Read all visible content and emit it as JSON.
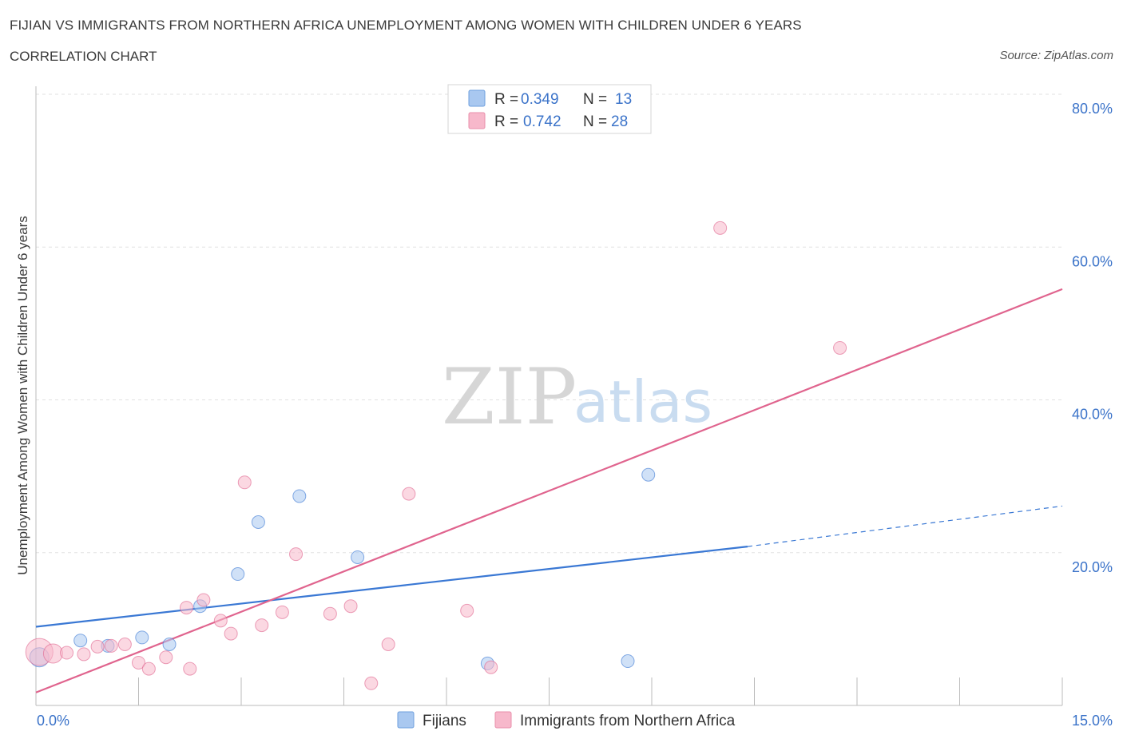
{
  "header": {
    "title": "FIJIAN VS IMMIGRANTS FROM NORTHERN AFRICA UNEMPLOYMENT AMONG WOMEN WITH CHILDREN UNDER 6 YEARS",
    "subtitle": "CORRELATION CHART",
    "source": "Source: ZipAtlas.com"
  },
  "watermark": {
    "zip": "ZIP",
    "atlas": "atlas"
  },
  "legend": {
    "rows": [
      {
        "r_label": "R =",
        "r_value": "0.349",
        "n_label": "N =",
        "n_value": "13",
        "color": "#a9c8f0"
      },
      {
        "r_label": "R =",
        "r_value": "0.742",
        "n_label": "N =",
        "n_value": "28",
        "color": "#f7b8cb"
      }
    ]
  },
  "chart_data": {
    "type": "scatter",
    "title": "FIJIAN VS IMMIGRANTS FROM NORTHERN AFRICA UNEMPLOYMENT AMONG WOMEN WITH CHILDREN UNDER 6 YEARS",
    "xlabel": "",
    "ylabel": "Unemployment Among Women with Children Under 6 years",
    "xlim": [
      0,
      15
    ],
    "ylim": [
      0,
      80
    ],
    "x_tick_labels": [
      "0.0%",
      "15.0%"
    ],
    "y_tick_values": [
      20,
      40,
      60,
      80
    ],
    "y_tick_labels": [
      "20.0%",
      "40.0%",
      "60.0%",
      "80.0%"
    ],
    "grid": true,
    "legend_position": "top-center",
    "series": [
      {
        "name": "Fijians",
        "color": "#3a78d4",
        "fill": "#a9c8f0",
        "points": [
          [
            0.05,
            6.3
          ],
          [
            0.65,
            8.5
          ],
          [
            1.05,
            7.8
          ],
          [
            1.55,
            8.9
          ],
          [
            1.95,
            8.0
          ],
          [
            2.4,
            13.0
          ],
          [
            2.95,
            17.2
          ],
          [
            3.25,
            24.0
          ],
          [
            3.85,
            27.4
          ],
          [
            4.7,
            19.4
          ],
          [
            6.6,
            5.5
          ],
          [
            8.65,
            5.8
          ],
          [
            8.95,
            30.2
          ]
        ],
        "trend": {
          "x": [
            0,
            10.4
          ],
          "y": [
            10.3,
            20.8
          ],
          "dashed_to": [
            15,
            26.1
          ]
        }
      },
      {
        "name": "Immigrants from Northern Africa",
        "color": "#e0648e",
        "fill": "#f7b8cb",
        "points": [
          [
            0.05,
            7.0
          ],
          [
            0.25,
            6.8
          ],
          [
            0.45,
            6.9
          ],
          [
            0.7,
            6.7
          ],
          [
            0.9,
            7.7
          ],
          [
            1.1,
            7.8
          ],
          [
            1.3,
            8.0
          ],
          [
            1.5,
            5.6
          ],
          [
            1.65,
            4.8
          ],
          [
            1.9,
            6.3
          ],
          [
            2.2,
            12.8
          ],
          [
            2.25,
            4.8
          ],
          [
            2.45,
            13.8
          ],
          [
            2.7,
            11.1
          ],
          [
            2.85,
            9.4
          ],
          [
            3.05,
            29.2
          ],
          [
            3.3,
            10.5
          ],
          [
            3.6,
            12.2
          ],
          [
            3.8,
            19.8
          ],
          [
            4.3,
            12.0
          ],
          [
            4.6,
            13.0
          ],
          [
            4.9,
            2.9
          ],
          [
            5.15,
            8.0
          ],
          [
            5.45,
            27.7
          ],
          [
            6.3,
            12.4
          ],
          [
            6.65,
            5.0
          ],
          [
            10.0,
            62.5
          ],
          [
            11.75,
            46.8
          ]
        ],
        "trend": {
          "x": [
            0,
            15
          ],
          "y": [
            1.7,
            54.5
          ]
        }
      }
    ]
  },
  "bottom_legend": [
    {
      "label": "Fijians",
      "color": "#a9c8f0"
    },
    {
      "label": "Immigrants from Northern Africa",
      "color": "#f7b8cb"
    }
  ]
}
